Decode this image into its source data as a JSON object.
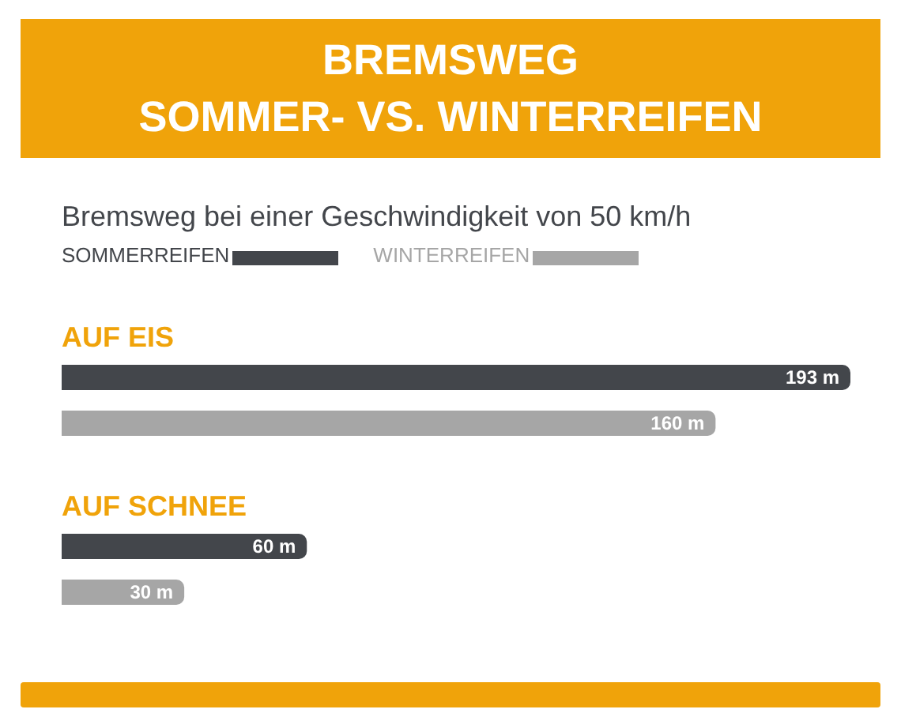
{
  "chart_data": {
    "type": "bar",
    "orientation": "horizontal",
    "title": "BREMSWEG\nSOMMER- VS. WINTERREIFEN",
    "subtitle": "Bremsweg bei einer Geschwindigkeit von 50 km/h",
    "categories": [
      "AUF EIS",
      "AUF SCHNEE"
    ],
    "series": [
      {
        "name": "SOMMERREIFEN",
        "color": "#43464b",
        "values": [
          193,
          60
        ],
        "value_labels": [
          "193 m",
          "60 m"
        ]
      },
      {
        "name": "WINTERREIFEN",
        "color": "#a6a6a6",
        "values": [
          160,
          30
        ],
        "value_labels": [
          "160 m",
          "30 m"
        ]
      }
    ],
    "legend": "top left",
    "grid": false
  }
}
